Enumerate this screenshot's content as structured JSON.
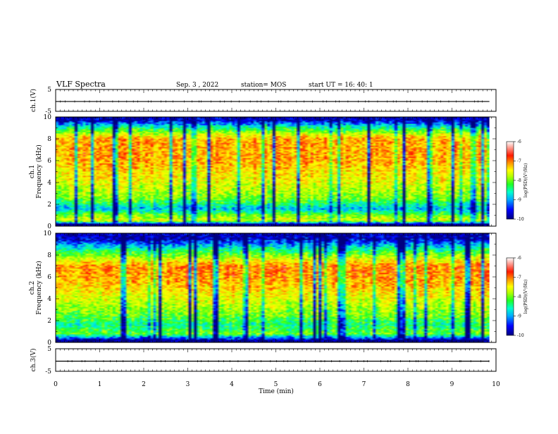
{
  "header": {
    "title": "VLF Spectra",
    "date": "Sep. 3 , 2022",
    "station": "station= MOS",
    "start": "start UT = 16: 40: 1"
  },
  "chart_data": [
    {
      "type": "line",
      "panel": "ch1-waveform",
      "ylabel": "ch.1(V)",
      "ylim": [
        -5,
        5
      ],
      "y_ticks": [
        "5",
        "-5"
      ],
      "xlim": [
        0,
        10
      ],
      "series": [
        {
          "x": [
            0,
            9.85
          ],
          "values": [
            -0.5,
            -0.5
          ]
        }
      ]
    },
    {
      "type": "heatmap",
      "panel": "ch1-spectrogram",
      "ylabel": "ch.1\nFrequency (kHz)",
      "ylim": [
        0,
        10
      ],
      "y_ticks": [
        "0",
        "2",
        "4",
        "6",
        "8",
        "10"
      ],
      "xlim": [
        0,
        9.85
      ],
      "band_levels": [
        {
          "f": 0.2,
          "level": -10
        },
        {
          "f": 0.5,
          "level": -7.5
        },
        {
          "f": 1.0,
          "level": -8
        },
        {
          "f": 1.6,
          "level": -9
        },
        {
          "f": 2.5,
          "level": -8
        },
        {
          "f": 4.0,
          "level": -7.5
        },
        {
          "f": 6.0,
          "level": -7
        },
        {
          "f": 8.0,
          "level": -7
        },
        {
          "f": 9.0,
          "level": -8.5
        },
        {
          "f": 9.7,
          "level": -9.8
        }
      ],
      "colorbar": {
        "label": "log(PSD)(V²/Hz)",
        "range": [
          -10,
          -6
        ],
        "ticks": [
          "-6",
          "-7",
          "-8",
          "-9",
          "-10"
        ]
      }
    },
    {
      "type": "heatmap",
      "panel": "ch2-spectrogram",
      "ylabel": "ch.2\nFrequency (kHz)",
      "ylim": [
        0,
        10
      ],
      "y_ticks": [
        "0",
        "2",
        "4",
        "6",
        "8",
        "10"
      ],
      "xlim": [
        0,
        9.85
      ],
      "band_levels": [
        {
          "f": 0.2,
          "level": -10
        },
        {
          "f": 0.8,
          "level": -8
        },
        {
          "f": 1.6,
          "level": -8.5
        },
        {
          "f": 2.5,
          "level": -8
        },
        {
          "f": 4.0,
          "level": -7.5
        },
        {
          "f": 5.5,
          "level": -7
        },
        {
          "f": 7.0,
          "level": -6.8
        },
        {
          "f": 8.5,
          "level": -8.5
        },
        {
          "f": 9.5,
          "level": -9.8
        }
      ],
      "colorbar": {
        "label": "log(PSD)(V²/Hz)",
        "range": [
          -10,
          -6
        ],
        "ticks": [
          "-6",
          "-7",
          "-8",
          "-9",
          "-10"
        ]
      }
    },
    {
      "type": "line",
      "panel": "ch3-waveform",
      "ylabel": "ch.3(V)",
      "ylim": [
        -5,
        5
      ],
      "y_ticks": [
        "5",
        "-5"
      ],
      "xlim": [
        0,
        10
      ],
      "series": [
        {
          "x": [
            0,
            9.85
          ],
          "values": [
            -0.5,
            -0.5
          ]
        }
      ]
    }
  ],
  "x_axis": {
    "label": "Time (min)",
    "ticks": [
      "0",
      "1",
      "2",
      "3",
      "4",
      "5",
      "6",
      "7",
      "8",
      "9",
      "10"
    ],
    "range": [
      0,
      10
    ]
  },
  "colors": {
    "colormap": [
      "#000080",
      "#0000ff",
      "#00aaff",
      "#00ffcc",
      "#22ff22",
      "#b4ff00",
      "#ffff00",
      "#ff9900",
      "#ff1a00",
      "#ffffff"
    ],
    "frame": "#000000"
  }
}
